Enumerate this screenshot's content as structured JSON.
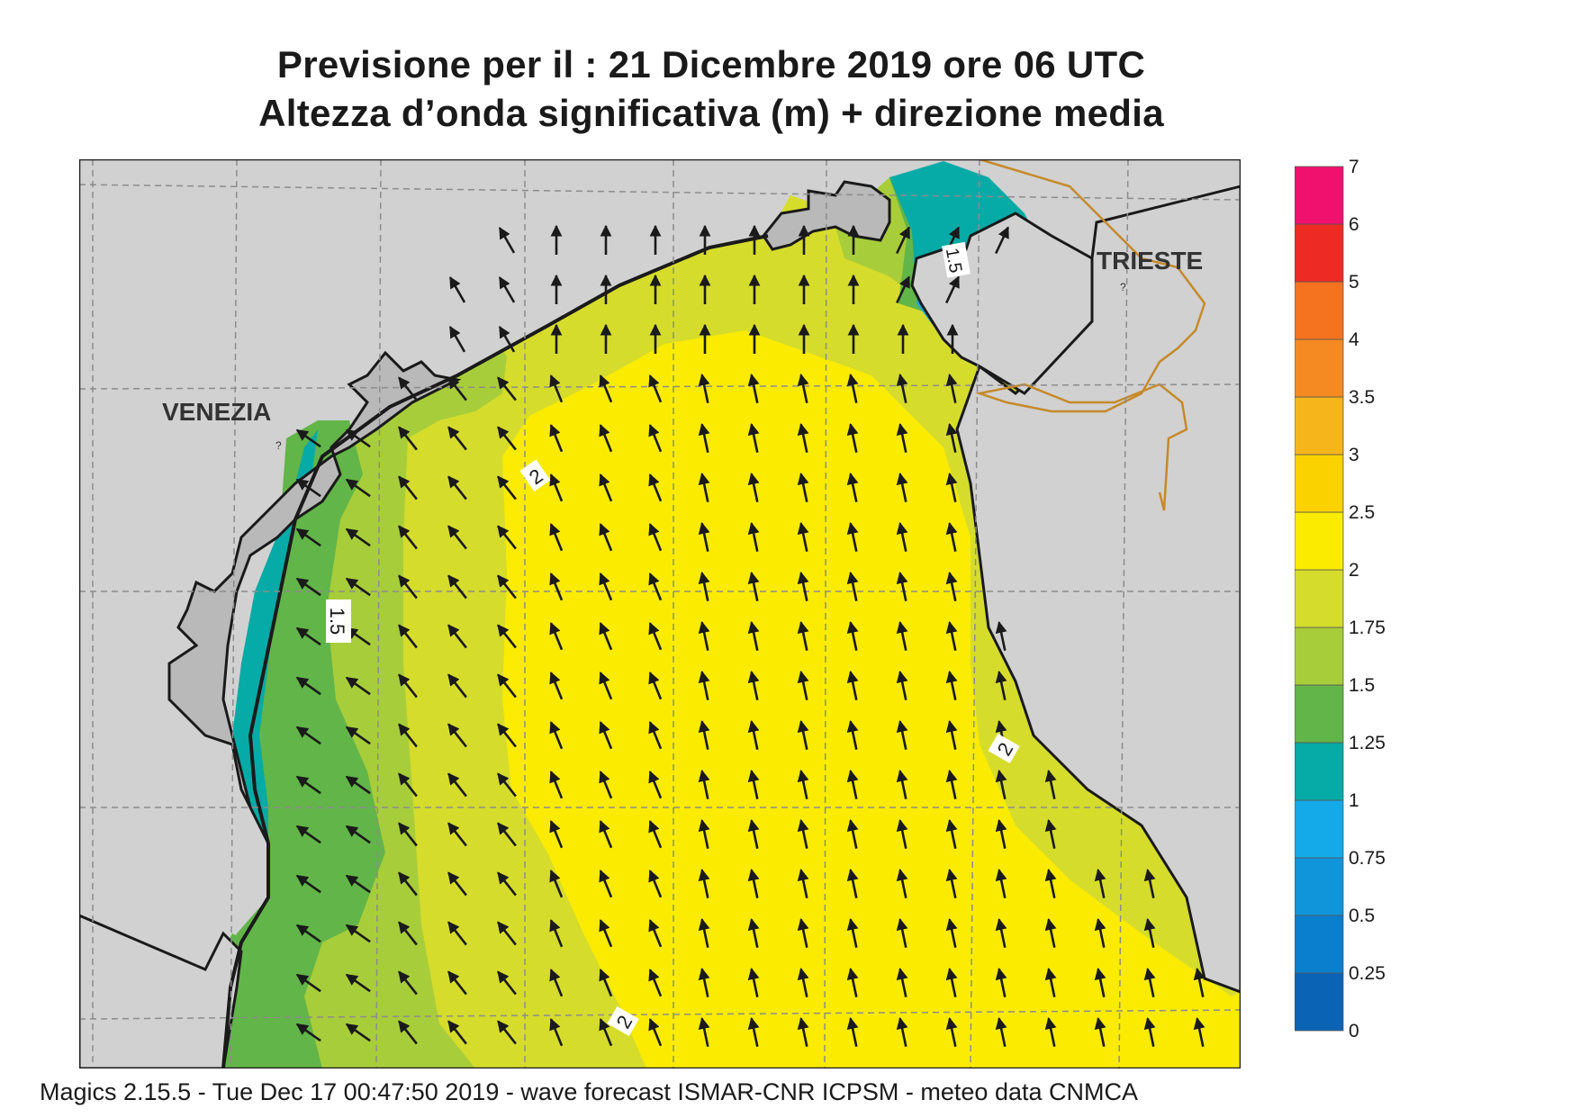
{
  "title": {
    "line1": "Previsione per il  :  21 Dicembre  2019   ore 06 UTC",
    "line2": "Altezza d’onda significativa (m) + direzione media"
  },
  "cities": {
    "venezia": "VENEZIA",
    "trieste": "TRIESTE"
  },
  "contour_labels": {
    "c1": "2",
    "c2": "1.5",
    "c3": "2",
    "c4": "2",
    "c5": "1.5"
  },
  "legend": {
    "levels": [
      "0",
      "0.25",
      "0.5",
      "0.75",
      "1",
      "1.25",
      "1.5",
      "1.75",
      "2",
      "2.5",
      "3",
      "3.5",
      "4",
      "5",
      "6",
      "7"
    ],
    "colors": [
      "#0a63b5",
      "#0a7fcd",
      "#1095da",
      "#14a9e8",
      "#06aaa6",
      "#62b548",
      "#a8cd3a",
      "#d6dc2c",
      "#faeb00",
      "#fad200",
      "#f7b51c",
      "#f58a22",
      "#f5731f",
      "#ee2a24",
      "#f0116e"
    ]
  },
  "colors": {
    "land": "#d1d1d1",
    "sea_high": "#faeb00",
    "sea_175": "#d6dc2c",
    "sea_15": "#a8cd3a",
    "sea_125": "#62b548",
    "sea_1": "#06aaa6",
    "sea_075": "#14a9e8",
    "border": "#c58a2a"
  },
  "footer": "Magics 2.15.5 - Tue Dec 17 00:47:50 2019 - wave forecast  ISMAR-CNR  ICPSM - meteo data   CNMCA"
}
